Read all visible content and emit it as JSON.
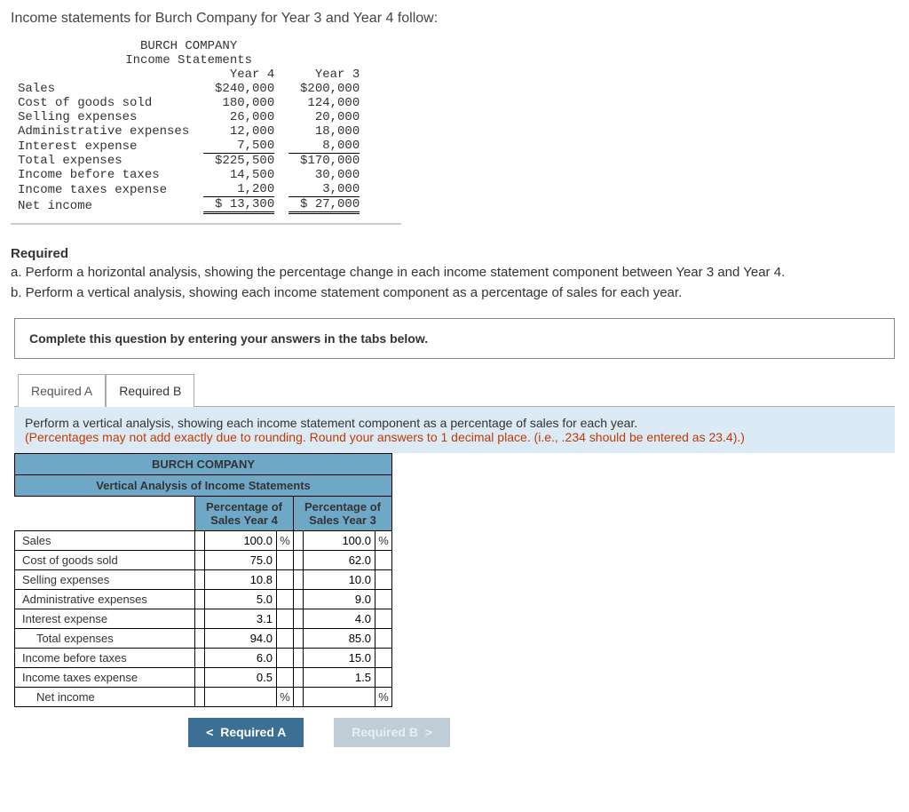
{
  "intro": "Income statements for Burch Company for Year 3 and Year 4 follow:",
  "income": {
    "company": "BURCH COMPANY",
    "subtitle": "Income Statements",
    "col4": "Year 4",
    "col3": "Year 3",
    "rows": [
      {
        "label": "Sales",
        "y4": "$240,000",
        "y3": "$200,000"
      },
      {
        "label": "Cost of goods sold",
        "y4": "180,000",
        "y3": "124,000"
      },
      {
        "label": "Selling expenses",
        "y4": "26,000",
        "y3": "20,000"
      },
      {
        "label": "Administrative expenses",
        "y4": "12,000",
        "y3": "18,000"
      },
      {
        "label": "Interest expense",
        "y4": "7,500",
        "y3": "8,000"
      },
      {
        "label": "Total expenses",
        "y4": "$225,500",
        "y3": "$170,000"
      },
      {
        "label": "Income before taxes",
        "y4": "14,500",
        "y3": "30,000"
      },
      {
        "label": "Income taxes expense",
        "y4": "1,200",
        "y3": "3,000"
      },
      {
        "label": "Net income",
        "y4": "$ 13,300",
        "y3": "$ 27,000"
      }
    ]
  },
  "required": {
    "head": "Required",
    "a": "a. Perform a horizontal analysis, showing the percentage change in each income statement component between Year 3 and Year 4.",
    "b": "b. Perform a vertical analysis, showing each income statement component as a percentage of sales for each year."
  },
  "instruction_box": "Complete this question by entering your answers in the tabs below.",
  "tabs": {
    "a": "Required A",
    "b": "Required B"
  },
  "tab_prompt": {
    "main": "Perform a vertical analysis, showing each income statement component as a percentage of sales for each year.",
    "warn": "(Percentages may not add exactly due to rounding. Round your answers to 1 decimal place. (i.e., .234 should be entered as 23.4).)"
  },
  "va": {
    "company": "BURCH COMPANY",
    "title": "Vertical Analysis of Income Statements",
    "col4": "Percentage of Sales Year 4",
    "col3": "Percentage of Sales Year 3",
    "rows": [
      {
        "label": "Sales",
        "y4": "100.0",
        "y4pct": "%",
        "y3": "100.0",
        "y3pct": "%",
        "indent": false
      },
      {
        "label": "Cost of goods sold",
        "y4": "75.0",
        "y4pct": "",
        "y3": "62.0",
        "y3pct": "",
        "indent": false
      },
      {
        "label": "Selling expenses",
        "y4": "10.8",
        "y4pct": "",
        "y3": "10.0",
        "y3pct": "",
        "indent": false
      },
      {
        "label": "Administrative expenses",
        "y4": "5.0",
        "y4pct": "",
        "y3": "9.0",
        "y3pct": "",
        "indent": false
      },
      {
        "label": "Interest expense",
        "y4": "3.1",
        "y4pct": "",
        "y3": "4.0",
        "y3pct": "",
        "indent": false
      },
      {
        "label": "Total expenses",
        "y4": "94.0",
        "y4pct": "",
        "y3": "85.0",
        "y3pct": "",
        "indent": true
      },
      {
        "label": "Income before taxes",
        "y4": "6.0",
        "y4pct": "",
        "y3": "15.0",
        "y3pct": "",
        "indent": false
      },
      {
        "label": "Income taxes expense",
        "y4": "0.5",
        "y4pct": "",
        "y3": "1.5",
        "y3pct": "",
        "indent": false
      },
      {
        "label": "Net income",
        "y4": "",
        "y4pct": "%",
        "y3": "",
        "y3pct": "%",
        "indent": true
      }
    ]
  },
  "nav": {
    "prev": "Required A",
    "next": "Required B"
  },
  "colors": {
    "tab_body_bg": "#dbeaf4",
    "table_header_bg": "#6fa8c7",
    "nav_prev_bg": "#3b6f93",
    "nav_next_bg": "#bfcdd6",
    "warn_text": "#c23b00"
  }
}
